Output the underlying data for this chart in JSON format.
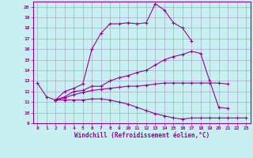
{
  "xlabel": "Windchill (Refroidissement éolien,°C)",
  "background_color": "#c8f0f0",
  "grid_color": "#aaaacc",
  "line_color": "#990099",
  "x_values": [
    0,
    1,
    2,
    3,
    4,
    5,
    6,
    7,
    8,
    9,
    10,
    11,
    12,
    13,
    14,
    15,
    16,
    17,
    18,
    19,
    20,
    21,
    22,
    23
  ],
  "xlim": [
    -0.5,
    23.5
  ],
  "ylim": [
    9,
    20.5
  ],
  "yticks": [
    9,
    10,
    11,
    12,
    13,
    14,
    15,
    16,
    17,
    18,
    19,
    20
  ],
  "line1": [
    12.8,
    11.5,
    11.2,
    12.0,
    12.3,
    12.7,
    16.0,
    17.5,
    18.4,
    18.4,
    18.5,
    18.4,
    18.5,
    20.3,
    19.7,
    18.5,
    18.0,
    16.8,
    null,
    null,
    null,
    null,
    null,
    null
  ],
  "line2": [
    null,
    null,
    11.2,
    11.5,
    12.0,
    12.1,
    12.5,
    12.5,
    13.0,
    13.3,
    13.5,
    13.8,
    14.0,
    14.5,
    15.0,
    15.3,
    15.5,
    15.8,
    15.6,
    13.0,
    10.5,
    10.4,
    null,
    null
  ],
  "line3": [
    null,
    null,
    11.2,
    11.4,
    11.7,
    11.9,
    12.1,
    12.2,
    12.3,
    12.4,
    12.5,
    12.5,
    12.6,
    12.7,
    12.8,
    12.8,
    12.8,
    12.8,
    12.8,
    12.8,
    12.8,
    12.7,
    null,
    null
  ],
  "line4": [
    null,
    null,
    11.2,
    11.2,
    11.2,
    11.2,
    11.3,
    11.3,
    11.2,
    11.0,
    10.8,
    10.5,
    10.2,
    9.9,
    9.7,
    9.5,
    9.4,
    9.5,
    9.5,
    9.5,
    9.5,
    9.5,
    9.5,
    9.5
  ]
}
